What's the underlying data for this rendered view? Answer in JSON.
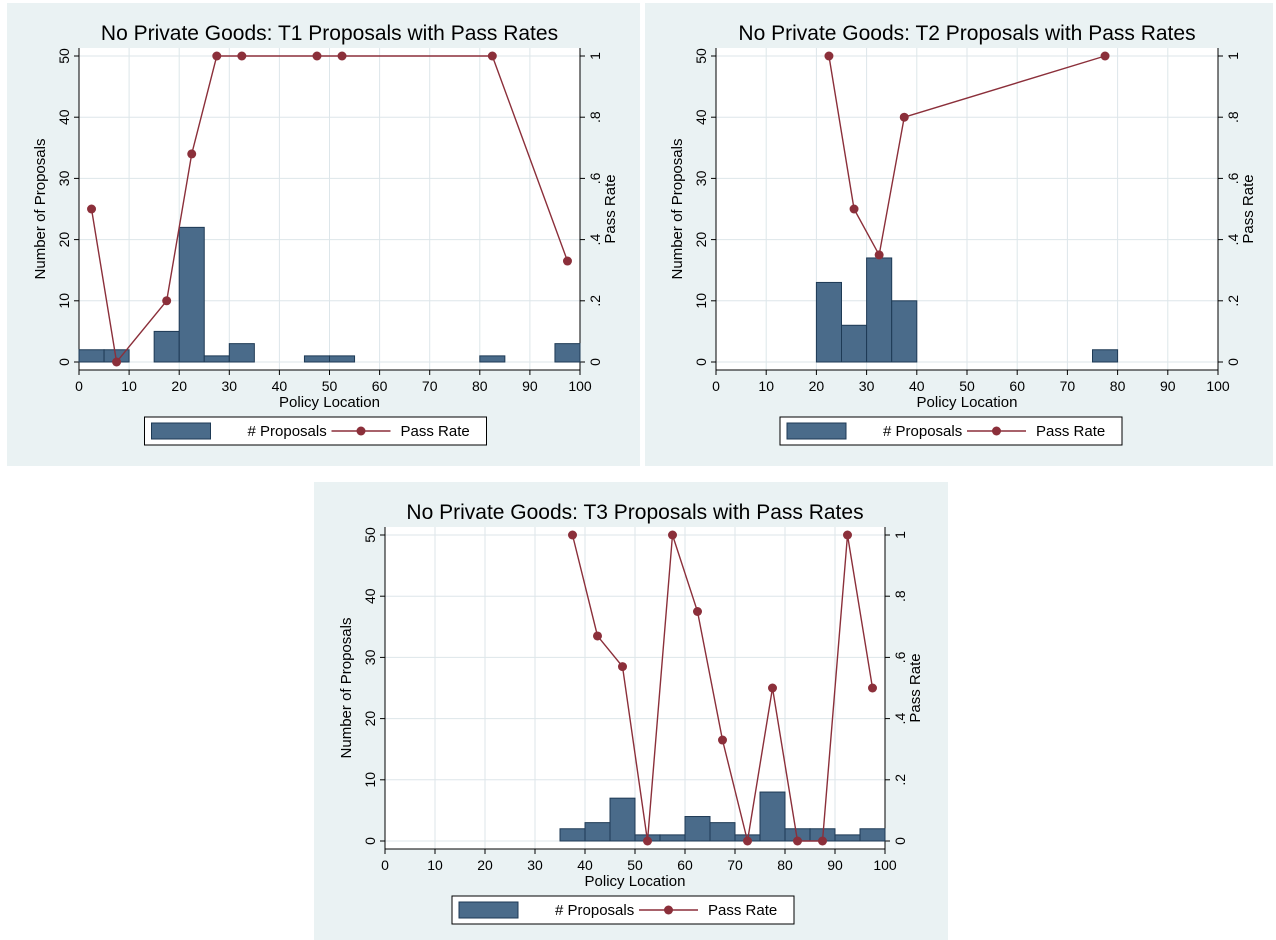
{
  "chart_data": [
    {
      "type": "bar",
      "title": "No Private Goods: T1 Proposals with Pass Rates",
      "xlabel": "Policy Location",
      "ylabel": "Number of Proposals",
      "y2label": "Pass Rate",
      "xlim": [
        0,
        100
      ],
      "ylim": [
        0,
        50
      ],
      "y2lim": [
        0,
        1
      ],
      "xticks": [
        "0",
        "10",
        "20",
        "30",
        "40",
        "50",
        "60",
        "70",
        "80",
        "90",
        "100"
      ],
      "yticks": [
        "0",
        "10",
        "20",
        "30",
        "40",
        "50"
      ],
      "y2ticks": [
        "0",
        ".2",
        ".4",
        ".6",
        ".8",
        "1"
      ],
      "grid": true,
      "legend_position": "bottom",
      "colors": {
        "bars": "#4a6b8a",
        "bar_edge": "#1e3a55",
        "line": "#8b2f3a",
        "background": "#eaf2f3",
        "plot_background": "#ffffff"
      },
      "series": [
        {
          "name": "# Proposals",
          "type": "bar",
          "bin_width": 5,
          "bins": [
            [
              0,
              2
            ],
            [
              5,
              2
            ],
            [
              15,
              5
            ],
            [
              20,
              22
            ],
            [
              25,
              1
            ],
            [
              30,
              3
            ],
            [
              45,
              1
            ],
            [
              50,
              1
            ],
            [
              80,
              1
            ],
            [
              95,
              3
            ]
          ]
        },
        {
          "name": "Pass Rate",
          "type": "line",
          "points": [
            [
              2.5,
              0.5
            ],
            [
              7.5,
              0
            ],
            [
              17.5,
              0.2
            ],
            [
              22.5,
              0.68
            ],
            [
              27.5,
              1
            ],
            [
              32.5,
              1
            ],
            [
              47.5,
              1
            ],
            [
              52.5,
              1
            ],
            [
              82.5,
              1
            ],
            [
              97.5,
              0.33
            ]
          ]
        }
      ],
      "legend": [
        "# Proposals",
        "Pass Rate"
      ]
    },
    {
      "type": "bar",
      "title": "No Private Goods: T2 Proposals with Pass Rates",
      "xlabel": "Policy Location",
      "ylabel": "Number of Proposals",
      "y2label": "Pass Rate",
      "xlim": [
        0,
        100
      ],
      "ylim": [
        0,
        50
      ],
      "y2lim": [
        0,
        1
      ],
      "xticks": [
        "0",
        "10",
        "20",
        "30",
        "40",
        "50",
        "60",
        "70",
        "80",
        "90",
        "100"
      ],
      "yticks": [
        "0",
        "10",
        "20",
        "30",
        "40",
        "50"
      ],
      "y2ticks": [
        "0",
        ".2",
        ".4",
        ".6",
        ".8",
        "1"
      ],
      "grid": true,
      "legend_position": "bottom",
      "colors": {
        "bars": "#4a6b8a",
        "bar_edge": "#1e3a55",
        "line": "#8b2f3a",
        "background": "#eaf2f3",
        "plot_background": "#ffffff"
      },
      "series": [
        {
          "name": "# Proposals",
          "type": "bar",
          "bin_width": 5,
          "bins": [
            [
              20,
              13
            ],
            [
              25,
              6
            ],
            [
              30,
              17
            ],
            [
              35,
              10
            ],
            [
              75,
              2
            ]
          ]
        },
        {
          "name": "Pass Rate",
          "type": "line",
          "points": [
            [
              22.5,
              1
            ],
            [
              27.5,
              0.5
            ],
            [
              32.5,
              0.35
            ],
            [
              37.5,
              0.8
            ],
            [
              77.5,
              1
            ]
          ]
        }
      ],
      "legend": [
        "# Proposals",
        "Pass Rate"
      ]
    },
    {
      "type": "bar",
      "title": "No Private Goods: T3 Proposals with Pass Rates",
      "xlabel": "Policy Location",
      "ylabel": "Number of Proposals",
      "y2label": "Pass Rate",
      "xlim": [
        0,
        100
      ],
      "ylim": [
        0,
        50
      ],
      "y2lim": [
        0,
        1
      ],
      "xticks": [
        "0",
        "10",
        "20",
        "30",
        "40",
        "50",
        "60",
        "70",
        "80",
        "90",
        "100"
      ],
      "yticks": [
        "0",
        "10",
        "20",
        "30",
        "40",
        "50"
      ],
      "y2ticks": [
        "0",
        ".2",
        ".4",
        ".6",
        ".8",
        "1"
      ],
      "grid": true,
      "legend_position": "bottom",
      "colors": {
        "bars": "#4a6b8a",
        "bar_edge": "#1e3a55",
        "line": "#8b2f3a",
        "background": "#eaf2f3",
        "plot_background": "#ffffff"
      },
      "series": [
        {
          "name": "# Proposals",
          "type": "bar",
          "bin_width": 5,
          "bins": [
            [
              35,
              2
            ],
            [
              40,
              3
            ],
            [
              45,
              7
            ],
            [
              50,
              1
            ],
            [
              55,
              1
            ],
            [
              60,
              4
            ],
            [
              65,
              3
            ],
            [
              70,
              1
            ],
            [
              75,
              8
            ],
            [
              80,
              2
            ],
            [
              85,
              2
            ],
            [
              90,
              1
            ],
            [
              95,
              2
            ]
          ]
        },
        {
          "name": "Pass Rate",
          "type": "line",
          "points": [
            [
              37.5,
              1
            ],
            [
              42.5,
              0.67
            ],
            [
              47.5,
              0.57
            ],
            [
              52.5,
              0
            ],
            [
              57.5,
              1
            ],
            [
              62.5,
              0.75
            ],
            [
              67.5,
              0.33
            ],
            [
              72.5,
              0
            ],
            [
              77.5,
              0.5
            ],
            [
              82.5,
              0
            ],
            [
              87.5,
              0
            ],
            [
              92.5,
              1
            ],
            [
              97.5,
              0.5
            ]
          ]
        }
      ],
      "legend": [
        "# Proposals",
        "Pass Rate"
      ]
    }
  ]
}
